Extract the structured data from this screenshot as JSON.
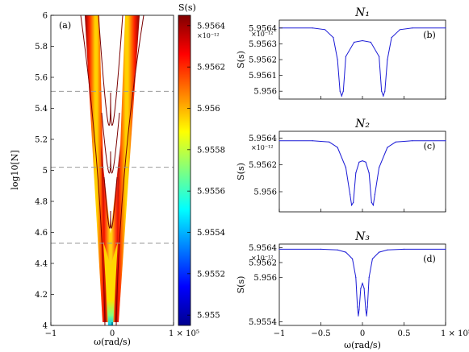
{
  "chart_data": [
    {
      "type": "heatmap",
      "panel": "(a)",
      "xlabel": "ω(rad/s)",
      "ylabel": "log10[N]",
      "xticks": [
        "−1",
        "0",
        "1 × 10⁵"
      ],
      "yticks": [
        "4",
        "4.2",
        "4.4",
        "4.6",
        "4.8",
        "5",
        "5.2",
        "5.4",
        "5.6",
        "5.8",
        "6"
      ],
      "xlim": [
        -1,
        1
      ],
      "ylim": [
        4,
        6
      ],
      "dashed_lines_y": [
        4.53,
        5.02,
        5.51
      ],
      "colorbar": {
        "title": "S(s)",
        "exponent": "×10⁻¹²",
        "ticks": [
          "5.9564",
          "5.9562",
          "5.956",
          "5.9558",
          "5.9556",
          "5.9554",
          "5.9552",
          "5.955"
        ],
        "tick_values": [
          5.9564,
          5.9562,
          5.956,
          5.9558,
          5.9556,
          5.9554,
          5.9552,
          5.955
        ],
        "range": [
          5.95495,
          5.95645
        ]
      }
    },
    {
      "type": "line",
      "panel": "(b)",
      "title": "N₁",
      "ylabel": "S(s)",
      "exponent": "×10⁻¹²",
      "yticks": [
        "5.9564",
        "5.9563",
        "5.9562",
        "5.9561",
        "5.956"
      ],
      "ylim": [
        5.95595,
        5.95645
      ],
      "x": [
        -1,
        -0.6,
        -0.45,
        -0.35,
        -0.3,
        -0.27,
        -0.25,
        -0.23,
        -0.2,
        -0.1,
        0,
        0.1,
        0.2,
        0.23,
        0.25,
        0.27,
        0.3,
        0.35,
        0.45,
        0.6,
        1
      ],
      "y": [
        5.9564,
        5.9564,
        5.95639,
        5.95634,
        5.9562,
        5.956,
        5.95597,
        5.956,
        5.95622,
        5.95631,
        5.95632,
        5.95631,
        5.95622,
        5.956,
        5.95597,
        5.956,
        5.9562,
        5.95634,
        5.95639,
        5.9564,
        5.9564
      ]
    },
    {
      "type": "line",
      "panel": "(c)",
      "title": "N₂",
      "ylabel": "S(s)",
      "exponent": "×10⁻¹²",
      "yticks": [
        "5.9564",
        "5.9562",
        "5.956"
      ],
      "ylim": [
        5.95585,
        5.95645
      ],
      "x": [
        -1,
        -0.6,
        -0.4,
        -0.3,
        -0.2,
        -0.15,
        -0.13,
        -0.11,
        -0.08,
        -0.04,
        0,
        0.04,
        0.08,
        0.11,
        0.13,
        0.15,
        0.2,
        0.3,
        0.4,
        0.6,
        1
      ],
      "y": [
        5.95638,
        5.95638,
        5.95637,
        5.95633,
        5.95618,
        5.95598,
        5.9559,
        5.95592,
        5.95614,
        5.95622,
        5.95623,
        5.95622,
        5.95614,
        5.95592,
        5.9559,
        5.95598,
        5.95618,
        5.95633,
        5.95637,
        5.95638,
        5.95638
      ]
    },
    {
      "type": "line",
      "panel": "(d)",
      "title": "N₃",
      "ylabel": "S(s)",
      "exponent": "×10⁻¹²",
      "xlabel": "ω(rad/s)",
      "xticks": [
        "−1",
        "−0.5",
        "0",
        "0.5",
        "1 × 10⁵"
      ],
      "xlim": [
        -1,
        1
      ],
      "yticks": [
        "5.9564",
        "5.9562",
        "5.956",
        "5.9554"
      ],
      "ylim": [
        5.95535,
        5.95645
      ],
      "x": [
        -1,
        -0.5,
        -0.3,
        -0.2,
        -0.12,
        -0.08,
        -0.06,
        -0.05,
        -0.04,
        -0.02,
        0,
        0.02,
        0.04,
        0.05,
        0.06,
        0.08,
        0.12,
        0.2,
        0.3,
        0.5,
        1
      ],
      "y": [
        5.95638,
        5.95638,
        5.95637,
        5.95634,
        5.95625,
        5.956,
        5.9556,
        5.95548,
        5.95556,
        5.95585,
        5.95592,
        5.95585,
        5.95556,
        5.95548,
        5.9556,
        5.956,
        5.95625,
        5.95634,
        5.95637,
        5.95638,
        5.95638
      ]
    }
  ]
}
